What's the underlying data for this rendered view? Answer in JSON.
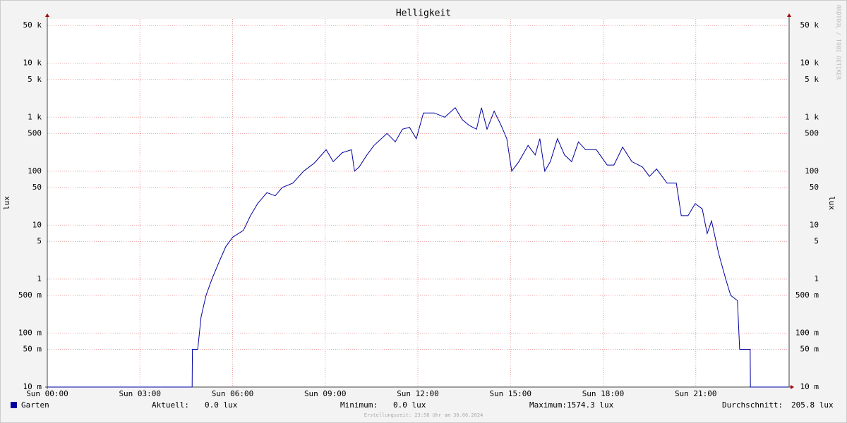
{
  "chart_data": {
    "type": "line",
    "title": "Helligkeit",
    "y_label": "lux",
    "watermark": "RRDTOOL / TOBI OETIKER",
    "footer": "Erstellungszeit: 23:58 Uhr am 30.06.2024",
    "log_y": true,
    "grid": true,
    "xlim": [
      0,
      24
    ],
    "xticks": [
      {
        "value": 0,
        "label": "Sun 00:00"
      },
      {
        "value": 3,
        "label": "Sun 03:00"
      },
      {
        "value": 6,
        "label": "Sun 06:00"
      },
      {
        "value": 9,
        "label": "Sun 09:00"
      },
      {
        "value": 12,
        "label": "Sun 12:00"
      },
      {
        "value": 15,
        "label": "Sun 15:00"
      },
      {
        "value": 18,
        "label": "Sun 18:00"
      },
      {
        "value": 21,
        "label": "Sun 21:00"
      }
    ],
    "ylim": [
      0.01,
      66000
    ],
    "yticks": [
      {
        "value": 0.01,
        "label": "10 m"
      },
      {
        "value": 0.05,
        "label": "50 m"
      },
      {
        "value": 0.1,
        "label": "100 m"
      },
      {
        "value": 0.5,
        "label": "500 m"
      },
      1,
      5,
      10,
      50,
      100,
      500,
      {
        "value": 1000,
        "label": "1 k"
      },
      {
        "value": 5000,
        "label": "5 k"
      },
      {
        "value": 10000,
        "label": "10 k"
      },
      {
        "value": 50000,
        "label": "50 k"
      }
    ],
    "x": [
      0,
      4.69,
      4.7,
      4.87,
      4.98,
      5.14,
      5.33,
      5.55,
      5.78,
      6.01,
      6.35,
      6.58,
      6.81,
      7.11,
      7.38,
      7.61,
      7.95,
      8.3,
      8.64,
      9.03,
      9.26,
      9.55,
      9.85,
      9.95,
      10.1,
      10.35,
      10.58,
      11.0,
      11.27,
      11.5,
      11.73,
      11.95,
      12.18,
      12.53,
      12.87,
      13.21,
      13.44,
      13.67,
      13.9,
      14.06,
      14.24,
      14.47,
      14.7,
      14.88,
      15.04,
      15.27,
      15.57,
      15.8,
      15.95,
      16.11,
      16.29,
      16.52,
      16.75,
      16.98,
      17.2,
      17.43,
      17.78,
      18.13,
      18.35,
      18.63,
      18.93,
      19.27,
      19.5,
      19.73,
      20.07,
      20.37,
      20.53,
      20.75,
      20.98,
      21.21,
      21.37,
      21.51,
      21.74,
      21.97,
      22.13,
      22.35,
      22.42,
      22.76,
      22.77,
      24
    ],
    "series": [
      {
        "name": "Garten",
        "color": "#0000a0",
        "values": [
          0,
          0,
          0.05,
          0.05,
          0.2,
          0.5,
          1,
          2,
          4,
          6,
          8,
          15,
          25,
          40,
          35,
          50,
          60,
          100,
          140,
          250,
          150,
          220,
          250,
          100,
          120,
          200,
          300,
          500,
          350,
          600,
          650,
          400,
          1200,
          1200,
          1000,
          1500,
          900,
          700,
          600,
          1500,
          600,
          1300,
          700,
          400,
          100,
          150,
          300,
          200,
          400,
          100,
          150,
          400,
          200,
          150,
          350,
          250,
          250,
          130,
          130,
          280,
          150,
          120,
          80,
          110,
          60,
          60,
          15,
          15,
          25,
          20,
          7,
          12,
          3,
          1,
          0.5,
          0.4,
          0.05,
          0.05,
          0,
          0
        ]
      }
    ],
    "stats": [
      {
        "label": "Aktuell:",
        "value": "0.0 lux"
      },
      {
        "label": "Minimum:",
        "value": "0.0 lux"
      },
      {
        "label": "Maximum:",
        "value": "1574.3 lux"
      },
      {
        "label": "Durchschnitt:",
        "value": "205.8 lux"
      }
    ]
  }
}
